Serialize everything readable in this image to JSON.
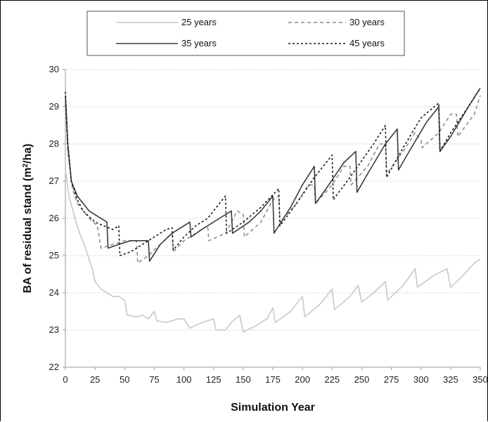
{
  "chart_data": {
    "type": "line",
    "title": "",
    "xlabel": "Simulation Year",
    "ylabel_main": "BA of residual stand (m",
    "ylabel_sup": "2",
    "ylabel_end": "/ha)",
    "xlim": [
      0,
      350
    ],
    "ylim": [
      22,
      30
    ],
    "xticks": [
      0,
      25,
      50,
      75,
      100,
      125,
      150,
      175,
      200,
      225,
      250,
      275,
      300,
      325,
      350
    ],
    "yticks": [
      22,
      23,
      24,
      25,
      26,
      27,
      28,
      29,
      30
    ],
    "grid": "horizontal dotted",
    "legend_position": "top",
    "series": [
      {
        "name": "25 years",
        "color": "#c8c8c8",
        "dash": "solid",
        "points": [
          [
            0,
            27.3
          ],
          [
            3,
            26.6
          ],
          [
            8,
            26.0
          ],
          [
            12,
            25.6
          ],
          [
            17,
            25.2
          ],
          [
            20,
            24.9
          ],
          [
            23,
            24.6
          ],
          [
            25,
            24.3
          ],
          [
            30,
            24.1
          ],
          [
            35,
            24.0
          ],
          [
            40,
            23.9
          ],
          [
            45,
            23.9
          ],
          [
            50,
            23.8
          ],
          [
            52,
            23.4
          ],
          [
            60,
            23.35
          ],
          [
            65,
            23.4
          ],
          [
            70,
            23.3
          ],
          [
            75,
            23.5
          ],
          [
            77,
            23.25
          ],
          [
            85,
            23.2
          ],
          [
            95,
            23.3
          ],
          [
            100,
            23.3
          ],
          [
            105,
            23.05
          ],
          [
            115,
            23.2
          ],
          [
            125,
            23.3
          ],
          [
            127,
            23.0
          ],
          [
            135,
            23.0
          ],
          [
            140,
            23.2
          ],
          [
            147,
            23.4
          ],
          [
            150,
            22.95
          ],
          [
            160,
            23.1
          ],
          [
            170,
            23.3
          ],
          [
            175,
            23.6
          ],
          [
            177,
            23.2
          ],
          [
            190,
            23.5
          ],
          [
            200,
            23.9
          ],
          [
            202,
            23.35
          ],
          [
            215,
            23.7
          ],
          [
            225,
            24.1
          ],
          [
            227,
            23.55
          ],
          [
            240,
            23.9
          ],
          [
            247,
            24.2
          ],
          [
            250,
            23.75
          ],
          [
            260,
            24.0
          ],
          [
            270,
            24.3
          ],
          [
            272,
            23.8
          ],
          [
            285,
            24.2
          ],
          [
            295,
            24.65
          ],
          [
            297,
            24.15
          ],
          [
            310,
            24.45
          ],
          [
            322,
            24.65
          ],
          [
            325,
            24.15
          ],
          [
            335,
            24.45
          ],
          [
            345,
            24.8
          ],
          [
            350,
            24.9
          ]
        ]
      },
      {
        "name": "30 years",
        "color": "#8c8c8c",
        "dash": "dashed",
        "points": [
          [
            0,
            29.1
          ],
          [
            2,
            27.8
          ],
          [
            6,
            26.8
          ],
          [
            10,
            26.4
          ],
          [
            15,
            26.2
          ],
          [
            20,
            26.0
          ],
          [
            27,
            25.8
          ],
          [
            30,
            25.2
          ],
          [
            40,
            25.3
          ],
          [
            50,
            25.4
          ],
          [
            60,
            25.4
          ],
          [
            61,
            24.8
          ],
          [
            70,
            25.0
          ],
          [
            80,
            25.3
          ],
          [
            90,
            25.6
          ],
          [
            91,
            25.1
          ],
          [
            100,
            25.4
          ],
          [
            110,
            25.6
          ],
          [
            120,
            25.8
          ],
          [
            121,
            25.4
          ],
          [
            135,
            25.6
          ],
          [
            145,
            26.2
          ],
          [
            150,
            26.1
          ],
          [
            151,
            25.5
          ],
          [
            165,
            25.9
          ],
          [
            175,
            26.5
          ],
          [
            180,
            26.6
          ],
          [
            181,
            25.9
          ],
          [
            195,
            26.4
          ],
          [
            205,
            26.9
          ],
          [
            210,
            26.9
          ],
          [
            211,
            26.4
          ],
          [
            225,
            26.9
          ],
          [
            235,
            27.4
          ],
          [
            240,
            27.4
          ],
          [
            241,
            26.9
          ],
          [
            255,
            27.4
          ],
          [
            265,
            28.0
          ],
          [
            270,
            28.0
          ],
          [
            271,
            27.2
          ],
          [
            285,
            27.8
          ],
          [
            295,
            28.3
          ],
          [
            300,
            28.1
          ],
          [
            301,
            27.9
          ],
          [
            315,
            28.3
          ],
          [
            325,
            28.8
          ],
          [
            330,
            28.8
          ],
          [
            331,
            28.2
          ],
          [
            345,
            28.8
          ],
          [
            350,
            29.3
          ]
        ]
      },
      {
        "name": "35 years",
        "color": "#3a3a3a",
        "dash": "solid",
        "points": [
          [
            0,
            29.3
          ],
          [
            2,
            28.0
          ],
          [
            5,
            27.0
          ],
          [
            10,
            26.6
          ],
          [
            15,
            26.4
          ],
          [
            20,
            26.2
          ],
          [
            25,
            26.1
          ],
          [
            30,
            26.0
          ],
          [
            35,
            25.9
          ],
          [
            36,
            25.2
          ],
          [
            45,
            25.3
          ],
          [
            55,
            25.4
          ],
          [
            65,
            25.4
          ],
          [
            70,
            25.4
          ],
          [
            71,
            24.85
          ],
          [
            80,
            25.3
          ],
          [
            90,
            25.6
          ],
          [
            100,
            25.8
          ],
          [
            105,
            25.9
          ],
          [
            106,
            25.5
          ],
          [
            115,
            25.7
          ],
          [
            130,
            26.0
          ],
          [
            140,
            26.2
          ],
          [
            141,
            25.6
          ],
          [
            155,
            25.9
          ],
          [
            165,
            26.2
          ],
          [
            175,
            26.6
          ],
          [
            176,
            25.6
          ],
          [
            190,
            26.3
          ],
          [
            200,
            26.9
          ],
          [
            210,
            27.4
          ],
          [
            211,
            26.4
          ],
          [
            220,
            26.8
          ],
          [
            235,
            27.5
          ],
          [
            245,
            27.8
          ],
          [
            246,
            26.7
          ],
          [
            255,
            27.2
          ],
          [
            270,
            28.0
          ],
          [
            280,
            28.4
          ],
          [
            281,
            27.3
          ],
          [
            290,
            27.8
          ],
          [
            305,
            28.6
          ],
          [
            315,
            29.0
          ],
          [
            316,
            27.8
          ],
          [
            325,
            28.2
          ],
          [
            340,
            29.0
          ],
          [
            350,
            29.5
          ]
        ]
      },
      {
        "name": "45 years",
        "color": "#1a1a1a",
        "dash": "dotted",
        "points": [
          [
            0,
            29.4
          ],
          [
            2,
            28.0
          ],
          [
            5,
            27.0
          ],
          [
            10,
            26.5
          ],
          [
            15,
            26.2
          ],
          [
            25,
            25.9
          ],
          [
            40,
            25.7
          ],
          [
            45,
            25.8
          ],
          [
            46,
            25.0
          ],
          [
            55,
            25.1
          ],
          [
            65,
            25.3
          ],
          [
            75,
            25.5
          ],
          [
            85,
            25.7
          ],
          [
            90,
            25.75
          ],
          [
            91,
            25.15
          ],
          [
            100,
            25.5
          ],
          [
            110,
            25.8
          ],
          [
            120,
            26.0
          ],
          [
            130,
            26.4
          ],
          [
            135,
            26.6
          ],
          [
            136,
            25.6
          ],
          [
            150,
            25.9
          ],
          [
            165,
            26.3
          ],
          [
            180,
            26.8
          ],
          [
            181,
            25.8
          ],
          [
            195,
            26.4
          ],
          [
            210,
            27.1
          ],
          [
            225,
            27.7
          ],
          [
            226,
            26.5
          ],
          [
            240,
            27.1
          ],
          [
            260,
            28.0
          ],
          [
            270,
            28.5
          ],
          [
            271,
            27.1
          ],
          [
            285,
            27.9
          ],
          [
            300,
            28.7
          ],
          [
            315,
            29.1
          ],
          [
            316,
            27.8
          ],
          [
            325,
            28.3
          ],
          [
            340,
            29.0
          ],
          [
            350,
            29.5
          ]
        ]
      }
    ]
  }
}
